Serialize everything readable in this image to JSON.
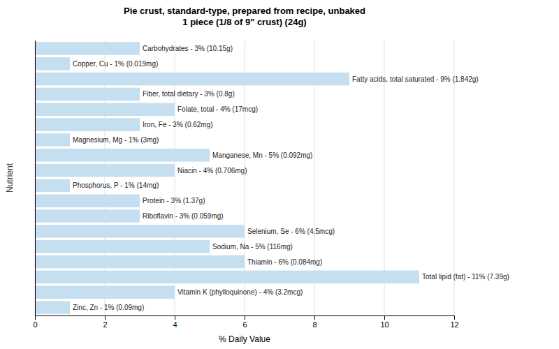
{
  "chart_data": {
    "type": "bar",
    "orientation": "horizontal",
    "title": "Pie crust, standard-type, prepared from recipe, unbaked\n1 piece (1/8 of 9\" crust) (24g)",
    "x_label": "% Daily Value",
    "y_label": "Nutrient",
    "categories": [
      "Carbohydrates - 3% (10.15g)",
      "Copper, Cu - 1% (0.019mg)",
      "Fatty acids, total saturated - 9% (1.842g)",
      "Fiber, total dietary - 3% (0.8g)",
      "Folate, total - 4% (17mcg)",
      "Iron, Fe - 3% (0.62mg)",
      "Magnesium, Mg - 1% (3mg)",
      "Manganese, Mn - 5% (0.092mg)",
      "Niacin - 4% (0.706mg)",
      "Phosphorus, P - 1% (14mg)",
      "Protein - 3% (1.37g)",
      "Riboflavin - 3% (0.059mg)",
      "Selenium, Se - 6% (4.5mcg)",
      "Sodium, Na - 5% (116mg)",
      "Thiamin - 6% (0.084mg)",
      "Total lipid (fat) - 11% (7.39g)",
      "Vitamin K (phylloquinone) - 4% (3.2mcg)",
      "Zinc, Zn - 1% (0.09mg)"
    ],
    "values": [
      3,
      1,
      9,
      3,
      4,
      3,
      1,
      5,
      4,
      1,
      3,
      3,
      6,
      5,
      6,
      11,
      4,
      1
    ],
    "color": "#c5dff0",
    "xlim": [
      0,
      12
    ],
    "xticks": [
      0,
      2,
      4,
      6,
      8,
      10,
      12
    ],
    "grid": true,
    "tick_labels": "x"
  }
}
